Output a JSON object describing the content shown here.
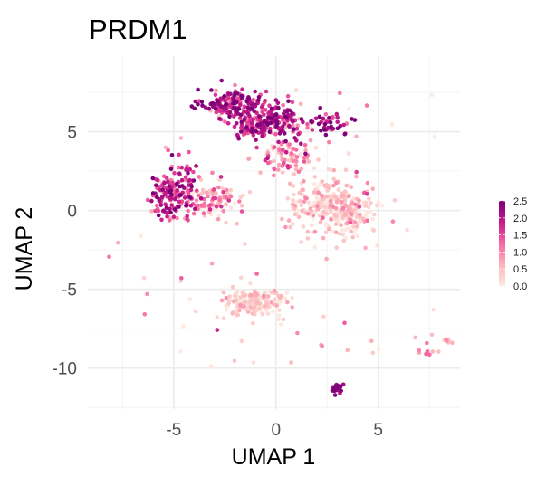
{
  "chart_data": {
    "type": "scatter",
    "title": "PRDM1",
    "xlabel": "UMAP 1",
    "ylabel": "UMAP 2",
    "xlim": [
      -9.2,
      9.0
    ],
    "ylim": [
      -12.6,
      9.8
    ],
    "x_ticks": [
      -5,
      0,
      5
    ],
    "x_tick_labels": [
      "-5",
      "0",
      "5"
    ],
    "y_ticks": [
      -10,
      -5,
      0,
      5
    ],
    "y_tick_labels": [
      "-10",
      "-5",
      "0",
      "5"
    ],
    "grid": true,
    "color_scale": {
      "min": 0.0,
      "max": 2.5,
      "ticks": [
        0.0,
        0.5,
        1.0,
        1.5,
        2.0,
        2.5
      ],
      "tick_labels": [
        "0.0",
        "0.5",
        "1.0",
        "1.5",
        "2.0",
        "2.5"
      ],
      "colors": [
        "#fde9e0",
        "#fbb4b9",
        "#f768a1",
        "#c51b8a",
        "#7a0177"
      ]
    },
    "legend_position": "right",
    "clusters": [
      {
        "cx": -2.0,
        "cy": 6.8,
        "sx": 0.75,
        "sy": 0.45,
        "n": 150,
        "expr_mean": 1.9,
        "expr_sd": 0.55
      },
      {
        "cx": 0.0,
        "cy": 5.8,
        "sx": 0.7,
        "sy": 0.55,
        "n": 140,
        "expr_mean": 1.9,
        "expr_sd": 0.55
      },
      {
        "cx": -1.2,
        "cy": 5.3,
        "sx": 0.55,
        "sy": 0.45,
        "n": 90,
        "expr_mean": 1.7,
        "expr_sd": 0.6
      },
      {
        "cx": 2.9,
        "cy": 5.5,
        "sx": 0.6,
        "sy": 0.35,
        "n": 40,
        "expr_mean": 2.0,
        "expr_sd": 0.5
      },
      {
        "cx": 0.6,
        "cy": 3.4,
        "sx": 0.55,
        "sy": 0.6,
        "n": 80,
        "expr_mean": 0.9,
        "expr_sd": 0.5
      },
      {
        "cx": -5.0,
        "cy": 1.2,
        "sx": 0.55,
        "sy": 0.9,
        "n": 170,
        "expr_mean": 1.7,
        "expr_sd": 0.6
      },
      {
        "cx": -3.2,
        "cy": 0.6,
        "sx": 0.75,
        "sy": 0.65,
        "n": 110,
        "expr_mean": 0.7,
        "expr_sd": 0.5
      },
      {
        "cx": 2.4,
        "cy": 0.4,
        "sx": 1.0,
        "sy": 0.9,
        "n": 200,
        "expr_mean": 0.35,
        "expr_sd": 0.35
      },
      {
        "cx": 3.6,
        "cy": -0.4,
        "sx": 0.7,
        "sy": 0.75,
        "n": 120,
        "expr_mean": 0.4,
        "expr_sd": 0.4
      },
      {
        "cx": -1.2,
        "cy": -5.8,
        "sx": 0.85,
        "sy": 0.6,
        "n": 170,
        "expr_mean": 0.25,
        "expr_sd": 0.3
      },
      {
        "cx": 3.0,
        "cy": -11.3,
        "sx": 0.14,
        "sy": 0.18,
        "n": 30,
        "expr_mean": 2.2,
        "expr_sd": 0.3
      },
      {
        "cx": 7.3,
        "cy": -9.0,
        "sx": 0.25,
        "sy": 0.1,
        "n": 8,
        "expr_mean": 0.8,
        "expr_sd": 0.4
      },
      {
        "cx": 8.3,
        "cy": -8.3,
        "sx": 0.12,
        "sy": 0.08,
        "n": 8,
        "expr_mean": 0.6,
        "expr_sd": 0.3
      }
    ],
    "scatter_noise": {
      "n": 80,
      "expr_mean": 0.5,
      "expr_sd": 0.5
    }
  }
}
